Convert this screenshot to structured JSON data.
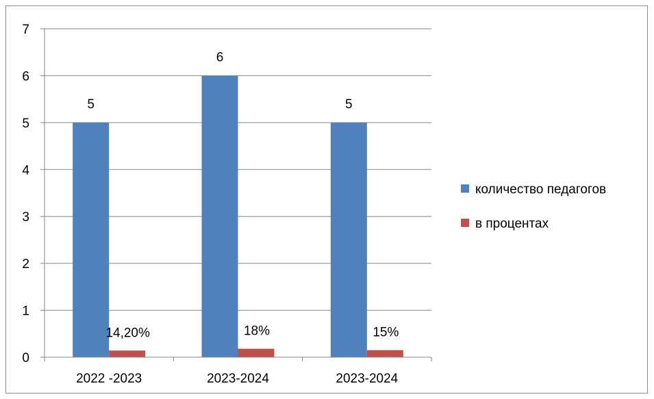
{
  "chart_data": {
    "type": "bar",
    "categories": [
      "2022 -2023",
      "2023-2024",
      "2023-2024"
    ],
    "series": [
      {
        "name": "количество педагогов",
        "color": "#4f81bd",
        "values": [
          5,
          6,
          5
        ],
        "labels": [
          "5",
          "6",
          "5"
        ]
      },
      {
        "name": "в процентах",
        "color": "#c0504d",
        "values": [
          0.142,
          0.18,
          0.15
        ],
        "labels": [
          "14,20%",
          "18%",
          "15%"
        ]
      }
    ],
    "ylim": [
      0,
      7
    ],
    "yticks": [
      "0",
      "1",
      "2",
      "3",
      "4",
      "5",
      "6",
      "7"
    ],
    "grid": true,
    "legend_position": "right"
  }
}
